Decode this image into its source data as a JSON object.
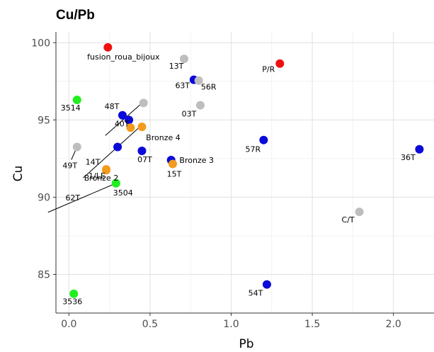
{
  "chart_data": {
    "type": "scatter",
    "title": "Cu/Pb",
    "xlabel": "Pb",
    "ylabel": "Cu",
    "xlim": [
      -0.08,
      2.25
    ],
    "ylim": [
      82.5,
      100.7
    ],
    "xticks": [
      0.0,
      0.5,
      1.0,
      1.5,
      2.0
    ],
    "xtick_labels": [
      "0.0",
      "0.5",
      "1.0",
      "1.5",
      "2.0"
    ],
    "yticks": [
      85,
      90,
      95,
      100
    ],
    "ytick_labels": [
      "85",
      "90",
      "95",
      "100"
    ],
    "grid": true,
    "colors": {
      "red": "#ee1111",
      "grey": "#bebebe",
      "blue": "#0a0ad9",
      "orange": "#f29b1d",
      "green": "#22ee22"
    },
    "points": [
      {
        "label": "fusion_roua_bijoux",
        "x": 0.24,
        "y": 99.7,
        "color": "red"
      },
      {
        "label": "P/R",
        "x": 1.3,
        "y": 98.65,
        "color": "red"
      },
      {
        "label": "13T",
        "x": 0.71,
        "y": 98.95,
        "color": "grey"
      },
      {
        "label": "63T",
        "x": 0.77,
        "y": 97.6,
        "color": "blue"
      },
      {
        "label": "56R",
        "x": 0.8,
        "y": 97.55,
        "color": "grey"
      },
      {
        "label": "03T",
        "x": 0.81,
        "y": 95.95,
        "color": "grey"
      },
      {
        "label": "3514",
        "x": 0.05,
        "y": 96.3,
        "color": "green"
      },
      {
        "label": "48T",
        "x": 0.33,
        "y": 95.3,
        "color": "blue"
      },
      {
        "label": "40T",
        "x": 0.37,
        "y": 95.0,
        "color": "blue"
      },
      {
        "label": "",
        "x": 0.46,
        "y": 96.1,
        "color": "grey"
      },
      {
        "label": "",
        "x": 0.38,
        "y": 94.5,
        "color": "orange"
      },
      {
        "label": "Bronze 4",
        "x": 0.45,
        "y": 94.55,
        "color": "orange"
      },
      {
        "label": "14T",
        "x": 0.3,
        "y": 93.25,
        "color": "blue"
      },
      {
        "label": "49T",
        "x": 0.05,
        "y": 93.25,
        "color": "grey"
      },
      {
        "label": "07T",
        "x": 0.45,
        "y": 93.0,
        "color": "blue"
      },
      {
        "label": "Bronze 2",
        "x": 0.23,
        "y": 91.8,
        "color": "orange"
      },
      {
        "label": "Bronze 3",
        "x": 0.63,
        "y": 92.4,
        "color": "blue"
      },
      {
        "label": "15T",
        "x": 0.64,
        "y": 92.15,
        "color": "orange"
      },
      {
        "label": "1/LE",
        "x": 0.23,
        "y": 91.75,
        "color": "orange"
      },
      {
        "label": "62T",
        "x": 0.29,
        "y": 90.9,
        "color": "green"
      },
      {
        "label": "3504",
        "x": 0.29,
        "y": 90.9,
        "color": "green"
      },
      {
        "label": "57R",
        "x": 1.2,
        "y": 93.7,
        "color": "blue"
      },
      {
        "label": "36T",
        "x": 2.16,
        "y": 93.1,
        "color": "blue"
      },
      {
        "label": "C/T",
        "x": 1.79,
        "y": 89.05,
        "color": "grey"
      },
      {
        "label": "54T",
        "x": 1.22,
        "y": 84.35,
        "color": "blue"
      },
      {
        "label": "3536",
        "x": 0.03,
        "y": 83.75,
        "color": "green"
      }
    ]
  }
}
